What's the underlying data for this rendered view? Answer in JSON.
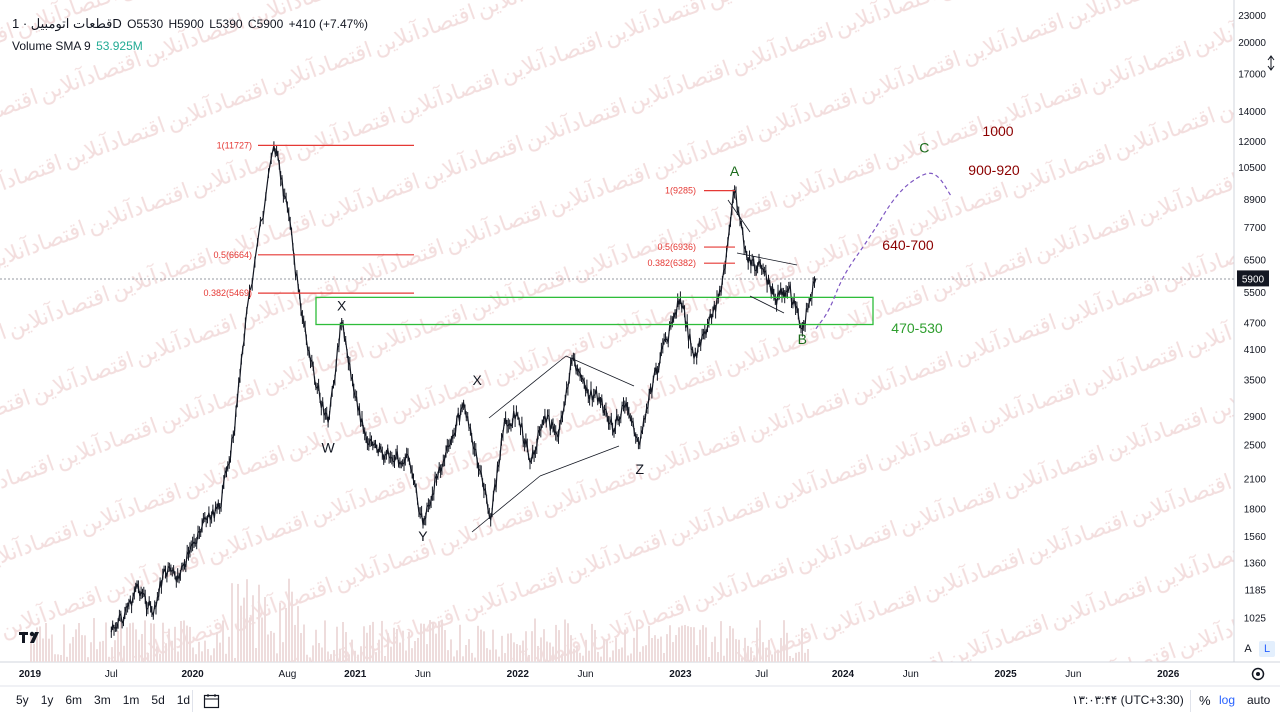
{
  "header": {
    "symbol": "قطعات اتومبیل · 1D",
    "open": "O5530",
    "high": "H5900",
    "low": "L5390",
    "close": "C5900",
    "change": "+410 (+7.47%)",
    "volume_label": "Volume SMA 9",
    "volume_value": "53.925M"
  },
  "price_axis": {
    "ticks": [
      "23000",
      "20000",
      "17000",
      "14000",
      "12000",
      "10500",
      "8900",
      "7700",
      "6500",
      "5500",
      "4700",
      "4100",
      "3500",
      "2900",
      "2500",
      "2100",
      "1800",
      "1560",
      "1360",
      "1185",
      "1025"
    ],
    "current_price": "5900"
  },
  "time_axis": {
    "ticks": [
      "2019",
      "Jul",
      "2020",
      "Aug",
      "2021",
      "Jun",
      "2022",
      "Jun",
      "2023",
      "Jul",
      "2024",
      "Jun",
      "2025",
      "Jun",
      "2026"
    ]
  },
  "chart_data": {
    "type": "candlestick",
    "scale": "log",
    "ylim": [
      900,
      23000
    ],
    "title": "قطعات اتومبیل · 1D",
    "price_path": [
      [
        "2019-Jul",
        950
      ],
      [
        "2019-Aug",
        1050
      ],
      [
        "2019-Sep",
        1200
      ],
      [
        "2019-Oct",
        1050
      ],
      [
        "2019-Nov",
        1300
      ],
      [
        "2019-Dec",
        1250
      ],
      [
        "2020-Jan",
        1500
      ],
      [
        "2020-Feb",
        1700
      ],
      [
        "2020-Mar",
        1800
      ],
      [
        "2020-Apr",
        2600
      ],
      [
        "2020-May",
        5000
      ],
      [
        "2020-Jul",
        11727
      ],
      [
        "2020-Aug",
        8500
      ],
      [
        "2020-Sep",
        5000
      ],
      [
        "2020-Oct",
        3500
      ],
      [
        "2020-Nov",
        2800
      ],
      [
        "2020-Dec",
        4700
      ],
      [
        "2021-Jan",
        3200
      ],
      [
        "2021-Feb",
        2500
      ],
      [
        "2021-Mar",
        2400
      ],
      [
        "2021-Apr",
        2350
      ],
      [
        "2021-May",
        2300
      ],
      [
        "2021-Jun",
        1650
      ],
      [
        "2021-Jul",
        2100
      ],
      [
        "2021-Aug",
        2500
      ],
      [
        "2021-Sep",
        3100
      ],
      [
        "2021-Oct",
        2300
      ],
      [
        "2021-Nov",
        1700
      ],
      [
        "2021-Dec",
        2800
      ],
      [
        "2022-Jan",
        2900
      ],
      [
        "2022-Feb",
        2300
      ],
      [
        "2022-Mar",
        2900
      ],
      [
        "2022-Apr",
        2600
      ],
      [
        "2022-May",
        3900
      ],
      [
        "2022-Jun",
        3300
      ],
      [
        "2022-Jul",
        3200
      ],
      [
        "2022-Aug",
        2700
      ],
      [
        "2022-Sep",
        3100
      ],
      [
        "2022-Oct",
        2500
      ],
      [
        "2022-Nov",
        3500
      ],
      [
        "2022-Dec",
        4300
      ],
      [
        "2023-Jan",
        5300
      ],
      [
        "2023-Feb",
        3900
      ],
      [
        "2023-Mar",
        4600
      ],
      [
        "2023-Apr",
        5500
      ],
      [
        "2023-May",
        9285
      ],
      [
        "2023-Jun",
        6400
      ],
      [
        "2023-Jul",
        6200
      ],
      [
        "2023-Aug",
        5300
      ],
      [
        "2023-Sep",
        5600
      ],
      [
        "2023-Oct",
        4550
      ],
      [
        "2023-Nov",
        5900
      ]
    ],
    "projection_path": [
      [
        "2023-Nov",
        4550
      ],
      [
        "2023-Dec",
        5000
      ],
      [
        "2024-Jan",
        6000
      ],
      [
        "2024-Mar",
        7300
      ],
      [
        "2024-May",
        9200
      ],
      [
        "2024-Jul",
        10200
      ],
      [
        "2024-Aug",
        10100
      ],
      [
        "2024-Sep",
        9000
      ]
    ],
    "fib_levels_2020": [
      {
        "label": "1(11727)",
        "value": 11727
      },
      {
        "label": "0.5(6664)",
        "value": 6664
      },
      {
        "label": "0.382(5469)",
        "value": 5469
      }
    ],
    "fib_levels_2023": [
      {
        "label": "1(9285)",
        "value": 9285
      },
      {
        "label": "0.5(6936)",
        "value": 6936
      },
      {
        "label": "0.382(6382)",
        "value": 6382
      }
    ],
    "support_zone": {
      "low": 4650,
      "high": 5350
    },
    "wave_labels": [
      {
        "label": "W",
        "at": "2020-Nov",
        "value": 2400
      },
      {
        "label": "X",
        "at": "2020-Dec",
        "value": 5000
      },
      {
        "label": "Y",
        "at": "2021-Jun",
        "value": 1520
      },
      {
        "label": "X",
        "at": "2021-Oct",
        "value": 3400
      },
      {
        "label": "Z",
        "at": "2022-Oct",
        "value": 2150
      },
      {
        "label": "A",
        "at": "2023-May",
        "value": 10000
      },
      {
        "label": "B",
        "at": "2023-Oct",
        "value": 4200
      },
      {
        "label": "C",
        "at": "2024-Jul",
        "value": 11300
      }
    ],
    "targets": [
      {
        "label": "1000",
        "color": "#8b0000"
      },
      {
        "label": "900-920",
        "color": "#8b0000"
      },
      {
        "label": "640-700",
        "color": "#8b0000"
      },
      {
        "label": "470-530",
        "color": "#2e9e2e"
      }
    ],
    "volume": {
      "label": "Volume SMA 9",
      "value": "53.925M"
    }
  },
  "bottom_bar": {
    "timeframes": [
      "5y",
      "1y",
      "6m",
      "3m",
      "1m",
      "5d",
      "1d"
    ],
    "clock": "۱۳:۰۳:۴۴ (UTC+3:30)",
    "percent": "%",
    "log": "log",
    "auto": "auto",
    "axis_mode_a": "A",
    "axis_mode_l": "L"
  },
  "colors": {
    "fib": "#e53935",
    "zone": "#2ebd3a",
    "projection": "#7e57c2",
    "target": "#8b0000",
    "target_green": "#2e9e2e"
  }
}
